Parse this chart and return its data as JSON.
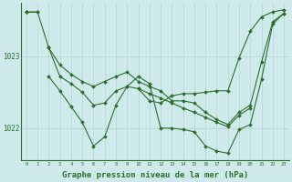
{
  "background_color": "#ceeaea",
  "grid_color_v": "#b8d4d4",
  "grid_color_h": "#b8d4d4",
  "line_color": "#2d6e2d",
  "xlabel": "Graphe pression niveau de la mer (hPa)",
  "xlabel_fontsize": 6.5,
  "ytick_labels": [
    "1022",
    "1023"
  ],
  "ytick_values": [
    1022.0,
    1023.0
  ],
  "ylim": [
    1021.55,
    1023.75
  ],
  "xlim": [
    -0.5,
    23.5
  ],
  "xtick_values": [
    0,
    1,
    2,
    3,
    4,
    5,
    6,
    7,
    8,
    9,
    10,
    11,
    12,
    13,
    14,
    15,
    16,
    17,
    18,
    19,
    20,
    21,
    22,
    23
  ],
  "series": [
    [
      1023.62,
      1023.62,
      null,
      null,
      null,
      null,
      null,
      null,
      null,
      null,
      1022.55,
      1022.48,
      1022.42,
      1022.35,
      1022.28,
      1022.22,
      1022.15,
      1022.08,
      1022.02,
      1022.18,
      1022.28,
      null,
      null,
      null
    ],
    [
      1023.62,
      1023.62,
      1023.12,
      1022.88,
      1022.75,
      1022.65,
      1022.58,
      1022.65,
      1022.72,
      1022.78,
      1022.65,
      1022.58,
      1022.52,
      1022.38,
      1022.38,
      1022.35,
      1022.22,
      1022.12,
      1022.05,
      1022.22,
      1022.32,
      1022.92,
      1023.48,
      1023.6
    ],
    [
      1023.62,
      null,
      1022.72,
      1022.52,
      1022.3,
      1022.08,
      1021.75,
      1021.88,
      1022.32,
      1022.58,
      1022.72,
      1022.62,
      1022.0,
      1022.0,
      1021.98,
      1021.95,
      1021.75,
      1021.68,
      1021.65,
      1021.98,
      1022.05,
      1022.68,
      1023.45,
      1023.6
    ],
    [
      1023.62,
      null,
      1023.12,
      1022.72,
      1022.62,
      1022.5,
      1022.32,
      1022.35,
      1022.52,
      1022.58,
      1022.55,
      1022.38,
      1022.35,
      1022.45,
      1022.48,
      1022.48,
      1022.5,
      1022.52,
      1022.52,
      1022.98,
      1023.35,
      1023.55,
      1023.62,
      1023.65
    ]
  ]
}
